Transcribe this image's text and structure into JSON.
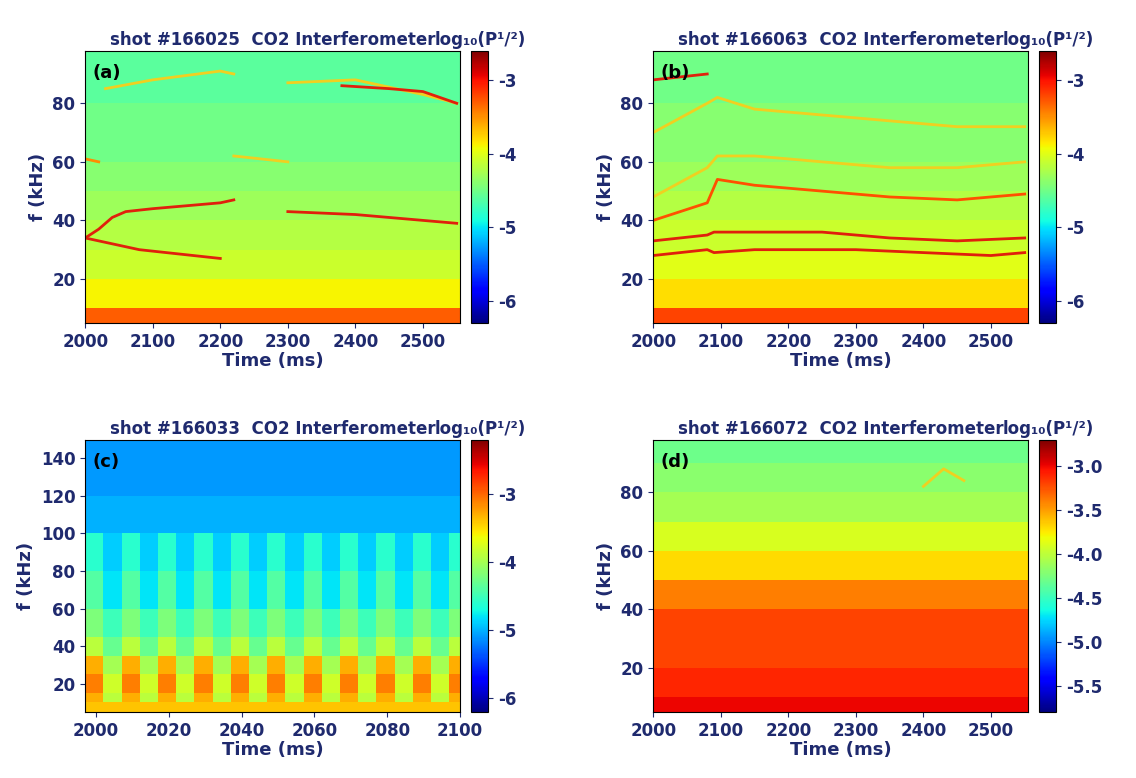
{
  "chart_data": [
    {
      "type": "heatmap",
      "title": "shot #166025  CO2 Interferometer",
      "annotations": [
        "(a)"
      ],
      "xlabel": "Time (ms)",
      "ylabel": "f (kHz)",
      "xlim": [
        2000,
        2555
      ],
      "ylim": [
        5,
        98
      ],
      "xticks": [
        2000,
        2100,
        2200,
        2300,
        2400,
        2500
      ],
      "yticks": [
        20,
        40,
        60,
        80
      ],
      "x_edges": [
        2000,
        2050,
        2100,
        2150,
        2200,
        2250,
        2300,
        2350,
        2400,
        2450,
        2500,
        2555
      ],
      "y_edges": [
        5,
        10,
        20,
        30,
        40,
        50,
        60,
        70,
        80,
        90,
        98
      ],
      "cells": [
        [
          -3.3,
          -3.3,
          -3.3,
          -3.3,
          -3.3,
          -3.3,
          -3.3,
          -3.3,
          -3.3,
          -3.3,
          -3.3
        ],
        [
          -3.9,
          -3.9,
          -3.9,
          -3.9,
          -3.9,
          -3.9,
          -3.9,
          -3.9,
          -3.9,
          -3.9,
          -3.9
        ],
        [
          -4.1,
          -4.1,
          -4.1,
          -4.1,
          -4.1,
          -4.1,
          -4.1,
          -4.1,
          -4.1,
          -4.1,
          -4.1
        ],
        [
          -4.2,
          -4.2,
          -4.2,
          -4.2,
          -4.2,
          -4.2,
          -4.2,
          -4.2,
          -4.2,
          -4.2,
          -4.2
        ],
        [
          -4.3,
          -4.3,
          -4.3,
          -4.3,
          -4.3,
          -4.3,
          -4.3,
          -4.3,
          -4.3,
          -4.3,
          -4.3
        ],
        [
          -4.4,
          -4.4,
          -4.4,
          -4.4,
          -4.4,
          -4.4,
          -4.4,
          -4.4,
          -4.4,
          -4.4,
          -4.4
        ],
        [
          -4.5,
          -4.5,
          -4.5,
          -4.5,
          -4.5,
          -4.5,
          -4.5,
          -4.5,
          -4.5,
          -4.5,
          -4.5
        ],
        [
          -4.5,
          -4.5,
          -4.5,
          -4.5,
          -4.5,
          -4.5,
          -4.5,
          -4.5,
          -4.5,
          -4.5,
          -4.5
        ],
        [
          -4.6,
          -4.6,
          -4.6,
          -4.6,
          -4.6,
          -4.6,
          -4.6,
          -4.6,
          -4.6,
          -4.6,
          -4.6
        ],
        [
          -4.6,
          -4.6,
          -4.6,
          -4.6,
          -4.6,
          -4.6,
          -4.6,
          -4.6,
          -4.6,
          -4.6,
          -4.6
        ]
      ],
      "colorbar": {
        "label": "log₁₀(P¹/²)",
        "range": [
          -6.3,
          -2.6
        ],
        "ticks": [
          -6,
          -5,
          -4,
          -3
        ]
      },
      "series": [
        {
          "type": "line",
          "color": "#e0200c",
          "x": [
            2000,
            2020,
            2040,
            2060,
            2100,
            2150,
            2200,
            2220,
            2225,
            2300,
            2400,
            2500,
            2550
          ],
          "values": [
            34,
            37,
            41,
            43,
            44,
            45,
            46,
            47,
            null,
            43,
            42,
            40,
            39
          ]
        },
        {
          "type": "line",
          "color": "#e0200c",
          "x": [
            2000,
            2040,
            2080,
            2120,
            2160,
            2200
          ],
          "values": [
            34,
            32,
            30,
            29,
            28,
            27
          ]
        },
        {
          "type": "line",
          "color": "#ff8c00",
          "x": [
            2000,
            2020
          ],
          "values": [
            61,
            60
          ]
        },
        {
          "type": "line",
          "color": "#f0d020",
          "x": [
            2220,
            2260,
            2300
          ],
          "values": [
            62,
            61,
            60
          ]
        },
        {
          "type": "line",
          "color": "#f0d020",
          "x": [
            2030,
            2100,
            2200,
            2220,
            2230,
            2300,
            2400,
            2500,
            2550
          ],
          "values": [
            85,
            88,
            91,
            90,
            null,
            87,
            88,
            83,
            80
          ]
        },
        {
          "type": "line",
          "color": "#e0200c",
          "x": [
            2380,
            2450,
            2500,
            2550
          ],
          "values": [
            86,
            85,
            84,
            80
          ]
        }
      ]
    },
    {
      "type": "heatmap",
      "title": "shot #166063  CO2 Interferometer",
      "annotations": [
        "(b)"
      ],
      "xlabel": "Time (ms)",
      "ylabel": "f (kHz)",
      "xlim": [
        2000,
        2555
      ],
      "ylim": [
        5,
        98
      ],
      "xticks": [
        2000,
        2100,
        2200,
        2300,
        2400,
        2500
      ],
      "yticks": [
        20,
        40,
        60,
        80
      ],
      "x_edges": [
        2000,
        2050,
        2100,
        2150,
        2200,
        2250,
        2300,
        2350,
        2400,
        2450,
        2500,
        2555
      ],
      "y_edges": [
        5,
        10,
        20,
        30,
        40,
        50,
        60,
        70,
        80,
        90,
        98
      ],
      "cells": [
        [
          -3.2,
          -3.2,
          -3.2,
          -3.2,
          -3.2,
          -3.2,
          -3.2,
          -3.2,
          -3.2,
          -3.2,
          -3.2
        ],
        [
          -3.8,
          -3.8,
          -3.8,
          -3.8,
          -3.8,
          -3.8,
          -3.8,
          -3.8,
          -3.8,
          -3.8,
          -3.8
        ],
        [
          -4.0,
          -4.0,
          -4.0,
          -4.0,
          -4.0,
          -4.0,
          -4.0,
          -4.0,
          -4.0,
          -4.0,
          -4.0
        ],
        [
          -4.1,
          -4.1,
          -4.1,
          -4.1,
          -4.1,
          -4.1,
          -4.1,
          -4.1,
          -4.1,
          -4.1,
          -4.1
        ],
        [
          -4.2,
          -4.2,
          -4.2,
          -4.2,
          -4.2,
          -4.2,
          -4.2,
          -4.2,
          -4.2,
          -4.2,
          -4.2
        ],
        [
          -4.3,
          -4.3,
          -4.3,
          -4.3,
          -4.3,
          -4.3,
          -4.3,
          -4.3,
          -4.3,
          -4.3,
          -4.3
        ],
        [
          -4.4,
          -4.4,
          -4.4,
          -4.4,
          -4.4,
          -4.4,
          -4.4,
          -4.4,
          -4.4,
          -4.4,
          -4.4
        ],
        [
          -4.4,
          -4.4,
          -4.4,
          -4.4,
          -4.4,
          -4.4,
          -4.4,
          -4.4,
          -4.4,
          -4.4,
          -4.4
        ],
        [
          -4.5,
          -4.5,
          -4.5,
          -4.5,
          -4.5,
          -4.5,
          -4.5,
          -4.5,
          -4.5,
          -4.5,
          -4.5
        ],
        [
          -4.5,
          -4.5,
          -4.5,
          -4.5,
          -4.5,
          -4.5,
          -4.5,
          -4.5,
          -4.5,
          -4.5,
          -4.5
        ]
      ],
      "colorbar": {
        "label": "log₁₀(P¹/²)",
        "range": [
          -6.3,
          -2.6
        ],
        "ticks": [
          -6,
          -5,
          -4,
          -3
        ]
      },
      "series": [
        {
          "type": "line",
          "color": "#e0200c",
          "x": [
            2000,
            2080,
            2090,
            2150,
            2300,
            2400,
            2500,
            2550
          ],
          "values": [
            28,
            30,
            29,
            30,
            30,
            29,
            28,
            29
          ]
        },
        {
          "type": "line",
          "color": "#e0200c",
          "x": [
            2000,
            2080,
            2090,
            2150,
            2250,
            2350,
            2450,
            2550
          ],
          "values": [
            33,
            35,
            36,
            36,
            36,
            34,
            33,
            34
          ]
        },
        {
          "type": "line",
          "color": "#ff5000",
          "x": [
            2000,
            2080,
            2095,
            2150,
            2250,
            2350,
            2450,
            2550
          ],
          "values": [
            40,
            46,
            54,
            52,
            50,
            48,
            47,
            49
          ]
        },
        {
          "type": "line",
          "color": "#f0d020",
          "x": [
            2000,
            2080,
            2095,
            2150,
            2250,
            2350,
            2450,
            2550
          ],
          "values": [
            48,
            58,
            62,
            62,
            60,
            58,
            58,
            60
          ]
        },
        {
          "type": "line",
          "color": "#f0d020",
          "x": [
            2000,
            2080,
            2095,
            2150,
            2250,
            2350,
            2450,
            2550
          ],
          "values": [
            70,
            80,
            82,
            78,
            76,
            74,
            72,
            72
          ]
        },
        {
          "type": "line",
          "color": "#e0200c",
          "x": [
            2000,
            2040,
            2080
          ],
          "values": [
            88,
            89,
            90
          ]
        }
      ]
    },
    {
      "type": "heatmap",
      "title": "shot #166033  CO2 Interferometer",
      "annotations": [
        "(c)"
      ],
      "xlabel": "Time (ms)",
      "ylabel": "f (kHz)",
      "xlim": [
        1997,
        2100
      ],
      "ylim": [
        5,
        150
      ],
      "xticks": [
        2000,
        2020,
        2040,
        2060,
        2080,
        2100
      ],
      "yticks": [
        20,
        40,
        60,
        80,
        100,
        120,
        140
      ],
      "x_edges": [
        1997,
        2002,
        2007,
        2012,
        2017,
        2022,
        2027,
        2032,
        2037,
        2042,
        2047,
        2052,
        2057,
        2062,
        2067,
        2072,
        2077,
        2082,
        2087,
        2092,
        2097,
        2100
      ],
      "y_edges": [
        5,
        10,
        15,
        25,
        35,
        45,
        60,
        80,
        100,
        120,
        150
      ],
      "cells": [
        [
          -3.4,
          -3.4,
          -3.4,
          -3.4,
          -3.4,
          -3.4,
          -3.4,
          -3.4,
          -3.4,
          -3.4,
          -3.4,
          -3.4,
          -3.4,
          -3.4,
          -3.4,
          -3.4,
          -3.4,
          -3.4,
          -3.4,
          -3.4,
          -3.4
        ],
        [
          -3.3,
          -3.9,
          -3.3,
          -3.9,
          -3.3,
          -3.9,
          -3.3,
          -3.9,
          -3.3,
          -3.9,
          -3.3,
          -3.9,
          -3.3,
          -3.9,
          -3.3,
          -3.9,
          -3.3,
          -3.9,
          -3.3,
          -3.9,
          -3.3
        ],
        [
          -3.1,
          -3.8,
          -3.1,
          -3.8,
          -3.1,
          -3.8,
          -3.1,
          -3.8,
          -3.1,
          -3.8,
          -3.1,
          -3.8,
          -3.1,
          -3.8,
          -3.1,
          -3.8,
          -3.1,
          -3.8,
          -3.1,
          -3.8,
          -3.1
        ],
        [
          -3.3,
          -4.0,
          -3.3,
          -4.0,
          -3.3,
          -4.0,
          -3.3,
          -4.0,
          -3.3,
          -4.0,
          -3.3,
          -4.0,
          -3.3,
          -4.0,
          -3.3,
          -4.0,
          -3.3,
          -4.0,
          -3.3,
          -4.0,
          -3.3
        ],
        [
          -3.9,
          -4.3,
          -3.9,
          -4.3,
          -3.9,
          -4.3,
          -3.9,
          -4.3,
          -3.9,
          -4.3,
          -3.9,
          -4.3,
          -3.9,
          -4.3,
          -3.9,
          -4.3,
          -3.9,
          -4.3,
          -3.9,
          -4.3,
          -3.9
        ],
        [
          -4.2,
          -4.5,
          -4.2,
          -4.5,
          -4.2,
          -4.5,
          -4.2,
          -4.5,
          -4.2,
          -4.5,
          -4.2,
          -4.5,
          -4.2,
          -4.5,
          -4.2,
          -4.5,
          -4.2,
          -4.5,
          -4.2,
          -4.5,
          -4.2
        ],
        [
          -4.4,
          -4.8,
          -4.4,
          -4.8,
          -4.4,
          -4.8,
          -4.4,
          -4.8,
          -4.4,
          -4.8,
          -4.4,
          -4.8,
          -4.4,
          -4.8,
          -4.4,
          -4.8,
          -4.4,
          -4.8,
          -4.4,
          -4.8,
          -4.4
        ],
        [
          -4.6,
          -4.9,
          -4.6,
          -4.9,
          -4.6,
          -4.9,
          -4.6,
          -4.9,
          -4.6,
          -4.9,
          -4.6,
          -4.9,
          -4.6,
          -4.9,
          -4.6,
          -4.9,
          -4.6,
          -4.9,
          -4.6,
          -4.9,
          -4.6
        ],
        [
          -5.0,
          -5.0,
          -5.0,
          -5.0,
          -5.0,
          -5.0,
          -5.0,
          -5.0,
          -5.0,
          -5.0,
          -5.0,
          -5.0,
          -5.0,
          -5.0,
          -5.0,
          -5.0,
          -5.0,
          -5.0,
          -5.0,
          -5.0,
          -5.0
        ],
        [
          -5.1,
          -5.1,
          -5.1,
          -5.1,
          -5.1,
          -5.1,
          -5.1,
          -5.1,
          -5.1,
          -5.1,
          -5.1,
          -5.1,
          -5.1,
          -5.1,
          -5.1,
          -5.1,
          -5.1,
          -5.1,
          -5.1,
          -5.1,
          -5.1
        ]
      ],
      "colorbar": {
        "label": "log₁₀(P¹/²)",
        "range": [
          -6.2,
          -2.2
        ],
        "ticks": [
          -6,
          -5,
          -4,
          -3
        ]
      },
      "series": []
    },
    {
      "type": "heatmap",
      "title": "shot #166072  CO2 Interferometer",
      "annotations": [
        "(d)"
      ],
      "xlabel": "Time (ms)",
      "ylabel": "f (kHz)",
      "xlim": [
        2000,
        2555
      ],
      "ylim": [
        5,
        98
      ],
      "xticks": [
        2000,
        2100,
        2200,
        2300,
        2400,
        2500
      ],
      "yticks": [
        20,
        40,
        60,
        80
      ],
      "x_edges": [
        2000,
        2050,
        2100,
        2150,
        2200,
        2250,
        2300,
        2350,
        2400,
        2450,
        2500,
        2555
      ],
      "y_edges": [
        5,
        10,
        20,
        30,
        40,
        50,
        60,
        70,
        80,
        90,
        98
      ],
      "cells": [
        [
          -3.0,
          -3.0,
          -3.0,
          -3.0,
          -3.0,
          -3.0,
          -3.0,
          -3.0,
          -3.0,
          -3.0,
          -3.0
        ],
        [
          -3.1,
          -3.1,
          -3.1,
          -3.1,
          -3.1,
          -3.1,
          -3.1,
          -3.1,
          -3.1,
          -3.1,
          -3.1
        ],
        [
          -3.2,
          -3.2,
          -3.2,
          -3.2,
          -3.2,
          -3.2,
          -3.2,
          -3.2,
          -3.2,
          -3.2,
          -3.2
        ],
        [
          -3.2,
          -3.2,
          -3.2,
          -3.2,
          -3.2,
          -3.2,
          -3.2,
          -3.2,
          -3.2,
          -3.2,
          -3.2
        ],
        [
          -3.4,
          -3.4,
          -3.4,
          -3.4,
          -3.4,
          -3.4,
          -3.4,
          -3.4,
          -3.4,
          -3.4,
          -3.4
        ],
        [
          -3.7,
          -3.7,
          -3.7,
          -3.7,
          -3.7,
          -3.7,
          -3.7,
          -3.7,
          -3.7,
          -3.7,
          -3.7
        ],
        [
          -3.9,
          -3.9,
          -3.9,
          -3.9,
          -3.9,
          -3.9,
          -3.9,
          -3.9,
          -3.9,
          -3.9,
          -3.9
        ],
        [
          -4.1,
          -4.1,
          -4.1,
          -4.1,
          -4.1,
          -4.1,
          -4.1,
          -4.1,
          -4.1,
          -4.1,
          -4.1
        ],
        [
          -4.2,
          -4.2,
          -4.2,
          -4.2,
          -4.2,
          -4.2,
          -4.2,
          -4.2,
          -4.2,
          -4.2,
          -4.2
        ],
        [
          -4.3,
          -4.3,
          -4.3,
          -4.3,
          -4.3,
          -4.3,
          -4.3,
          -4.3,
          -4.3,
          -4.3,
          -4.3
        ]
      ],
      "colorbar": {
        "label": "log₁₀(P¹/²)",
        "range": [
          -5.8,
          -2.7
        ],
        "ticks": [
          -5.5,
          -5.0,
          -4.5,
          -4.0,
          -3.5,
          -3.0
        ]
      },
      "series": [
        {
          "type": "line",
          "color": "#f0d020",
          "x": [
            2400,
            2430,
            2460
          ],
          "values": [
            82,
            88,
            84
          ]
        }
      ]
    }
  ]
}
